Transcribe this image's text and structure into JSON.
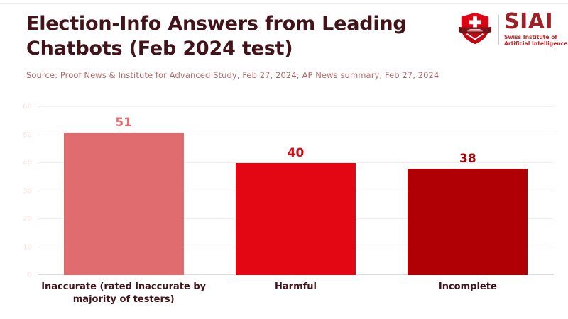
{
  "header": {
    "title": "Election-Info Answers from Leading Chatbots (Feb 2024 test)",
    "source": "Source: Proof News & Institute for Advanced Study, Feb 27, 2024; AP News summary, Feb 27, 2024"
  },
  "logo": {
    "acronym": "SIAI",
    "org_line1": "Swiss Institute of",
    "org_line2": "Artificial Intelligence",
    "shield_icon": "swiss-shield-icon",
    "colors": {
      "shield_red": "#e30613",
      "shield_dark_red": "#c00310",
      "banner_maroon": "#7d1419",
      "acronym_red": "#9d2227",
      "subtext_red": "#c1272d",
      "divider_gray": "#cccccc"
    }
  },
  "chart_data": {
    "type": "bar",
    "title": "Election-Info Answers from Leading Chatbots (Feb 2024 test)",
    "categories": [
      "Inaccurate (rated inaccurate by majority of testers)",
      "Harmful",
      "Incomplete"
    ],
    "values": [
      51,
      40,
      38
    ],
    "bar_colors": [
      "#e06c70",
      "#e30613",
      "#b00005"
    ],
    "value_label_colors": [
      "#e06c70",
      "#e30613",
      "#b00005"
    ],
    "yticks": [
      0,
      10,
      20,
      30,
      40,
      50,
      60
    ],
    "ylim": [
      0,
      60
    ],
    "xlabel": "",
    "ylabel": "",
    "grid": true,
    "legend": false,
    "value_labels_shown": true
  },
  "colors": {
    "background": "#ffffff",
    "title_text": "#421318",
    "source_text": "#b0696c",
    "category_text": "#421318",
    "ytick_text": "#fadfe0",
    "gridline": "#fcebe8",
    "baseline": "#d9d9d9"
  }
}
